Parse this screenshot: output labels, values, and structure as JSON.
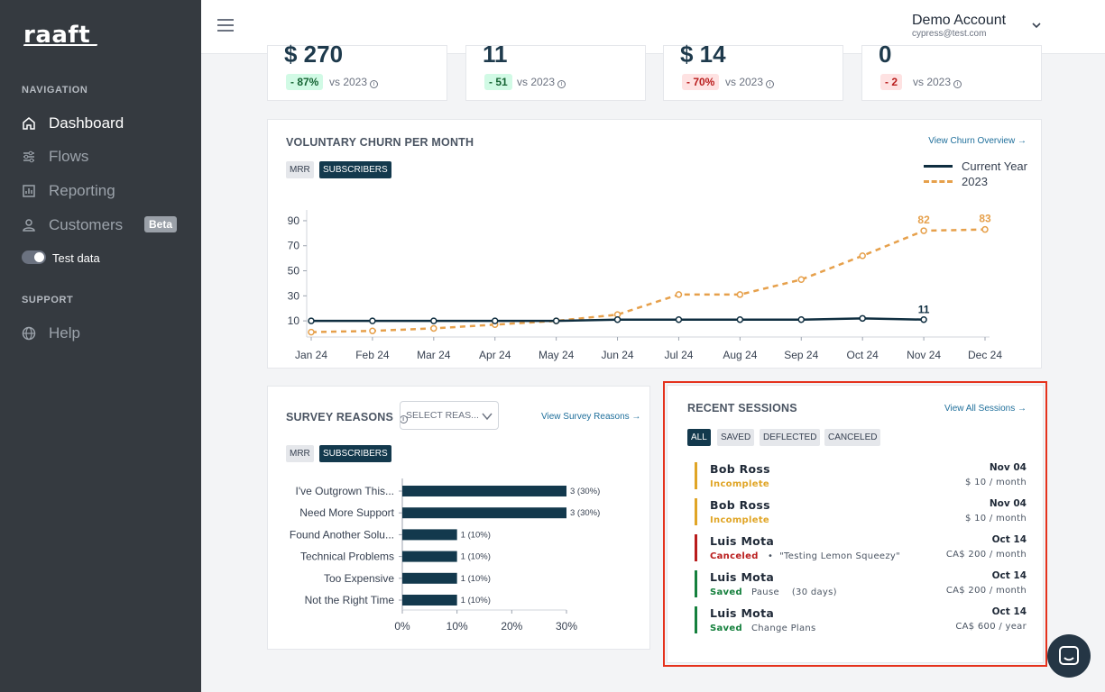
{
  "brand": {
    "logo": "raaft"
  },
  "sidebar": {
    "nav_heading": "NAVIGATION",
    "support_heading": "SUPPORT",
    "items": [
      {
        "label": "Dashboard",
        "icon": "home-icon"
      },
      {
        "label": "Flows",
        "icon": "flows-icon"
      },
      {
        "label": "Reporting",
        "icon": "reporting-icon"
      },
      {
        "label": "Customers",
        "icon": "user-icon",
        "badge": "Beta"
      }
    ],
    "test_data_label": "Test data",
    "help_label": "Help"
  },
  "header": {
    "account_name": "Demo Account",
    "account_email": "cypress@test.com"
  },
  "stats": [
    {
      "value": "$ 270",
      "change": "- 87%",
      "vs": "vs 2023",
      "tone": "green"
    },
    {
      "value": "11",
      "change": "- 51",
      "vs": "vs 2023",
      "tone": "green"
    },
    {
      "value": "$ 14",
      "change": "- 70%",
      "vs": "vs 2023",
      "tone": "red"
    },
    {
      "value": "0",
      "change": "- 2",
      "vs": "vs 2023",
      "tone": "red"
    }
  ],
  "churn": {
    "title": "VOLUNTARY CHURN PER MONTH",
    "link": "View Churn Overview →",
    "toggle_mrr": "MRR",
    "toggle_subscribers": "SUBSCRIBERS"
  },
  "survey": {
    "title": "SURVEY REASONS",
    "select_placeholder": "SELECT REAS...",
    "link": "View Survey Reasons →",
    "toggle_mrr": "MRR",
    "toggle_subscribers": "SUBSCRIBERS"
  },
  "sessions": {
    "title": "RECENT SESSIONS",
    "link": "View All Sessions →",
    "filters": [
      "ALL",
      "SAVED",
      "DEFLECTED",
      "CANCELED"
    ],
    "items": [
      {
        "name": "Bob Ross",
        "status": "Incomplete",
        "status_color": "#e0a526",
        "detail": "",
        "date": "Nov 04",
        "amount": "$ 10 / month"
      },
      {
        "name": "Bob Ross",
        "status": "Incomplete",
        "status_color": "#e0a526",
        "detail": "",
        "date": "Nov 04",
        "amount": "$ 10 / month"
      },
      {
        "name": "Luis Mota",
        "status": "Canceled",
        "status_color": "#b91c1c",
        "detail": "•  \"Testing Lemon Squeezy\"",
        "date": "Oct 14",
        "amount": "CA$ 200 / month"
      },
      {
        "name": "Luis Mota",
        "status": "Saved",
        "status_color": "#15803d",
        "detail": "Pause    (30 days)",
        "date": "Oct 14",
        "amount": "CA$ 200 / month"
      },
      {
        "name": "Luis Mota",
        "status": "Saved",
        "status_color": "#15803d",
        "detail": "Change Plans",
        "date": "Oct 14",
        "amount": "CA$ 600 / year"
      }
    ]
  },
  "chart_data": [
    {
      "type": "line",
      "title": "VOLUNTARY CHURN PER MONTH",
      "categories": [
        "Jan 24",
        "Feb 24",
        "Mar 24",
        "Apr 24",
        "May 24",
        "Jun 24",
        "Jul 24",
        "Aug 24",
        "Sep 24",
        "Oct 24",
        "Nov 24",
        "Dec 24"
      ],
      "yticks": [
        10,
        30,
        50,
        70,
        90
      ],
      "ylim": [
        0,
        95
      ],
      "series": [
        {
          "name": "Current Year",
          "color": "#0f2e40",
          "values": [
            10,
            10,
            10,
            10,
            10,
            11,
            11,
            11,
            11,
            12,
            11,
            null
          ],
          "end_label": "11"
        },
        {
          "name": "2023",
          "color": "#e6a04b",
          "values": [
            1,
            2,
            4,
            7,
            10,
            15,
            31,
            31,
            43,
            62,
            82,
            83
          ],
          "point_labels": {
            "10": "82",
            "11": "83"
          }
        }
      ],
      "legend": "top-right"
    },
    {
      "type": "bar",
      "orientation": "horizontal",
      "categories": [
        "I've Outgrown This...",
        "Need More Support",
        "Found Another Solu...",
        "Technical Problems",
        "Too Expensive",
        "Not the Right Time"
      ],
      "values": [
        3,
        3,
        1,
        1,
        1,
        1
      ],
      "labels": [
        "3 (30%)",
        "3 (30%)",
        "1 (10%)",
        "1 (10%)",
        "1 (10%)",
        "1 (10%)"
      ],
      "xticks": [
        "0%",
        "10%",
        "20%",
        "30%"
      ],
      "xlim": [
        0,
        30
      ],
      "percent": [
        30,
        30,
        10,
        10,
        10,
        10
      ],
      "color": "#13394d"
    }
  ]
}
